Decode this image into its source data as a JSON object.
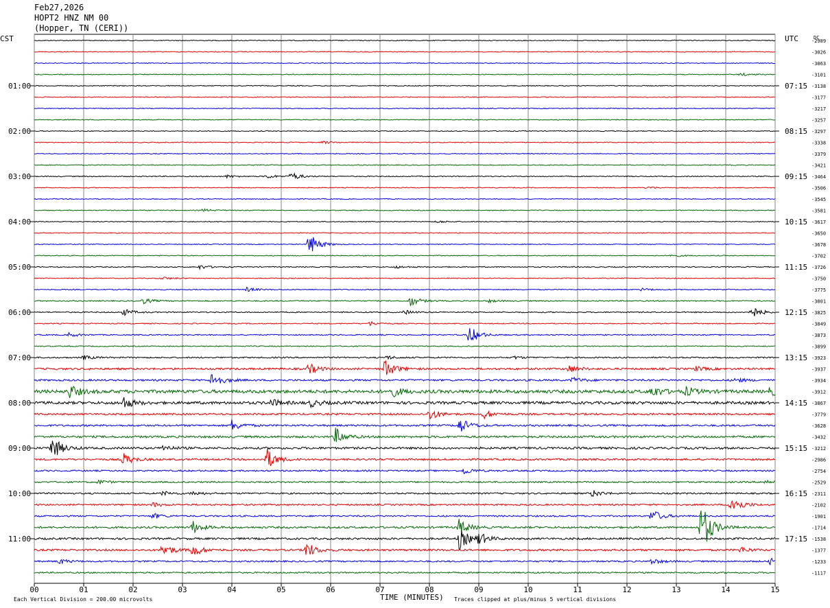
{
  "header": {
    "date": "Feb27,2026",
    "station": "HOPT2 HNZ NM 00",
    "location": "(Hopper, TN (CERI))"
  },
  "chart_data": {
    "type": "line",
    "title": "Feb27,2026",
    "xlabel": "TIME (MINUTES)",
    "left_axis_title": "CST",
    "right_axis_title": "UTC",
    "dc_label": "DC",
    "x_ticks": [
      "00",
      "01",
      "02",
      "03",
      "04",
      "05",
      "06",
      "07",
      "08",
      "09",
      "10",
      "11",
      "12",
      "13",
      "14",
      "15"
    ],
    "xlim": [
      0,
      15
    ],
    "left_hour_labels": [
      "01:00",
      "02:00",
      "03:00",
      "04:00",
      "05:00",
      "06:00",
      "07:00",
      "08:00",
      "09:00",
      "10:00",
      "11:00"
    ],
    "right_hour_labels": [
      "07:15",
      "08:15",
      "09:15",
      "10:15",
      "11:15",
      "12:15",
      "13:15",
      "14:15",
      "15:15",
      "16:15",
      "17:15"
    ],
    "dc_offsets": [
      "-2989",
      "-3026",
      "-3063",
      "-3101",
      "-3138",
      "-3177",
      "-3217",
      "-3257",
      "-3297",
      "-3338",
      "-3379",
      "-3421",
      "-3464",
      "-3506",
      "-3545",
      "-3581",
      "-3617",
      "-3650",
      "-3678",
      "-3702",
      "-3726",
      "-3750",
      "-3775",
      "-3801",
      "-3825",
      "-3849",
      "-3873",
      "-3899",
      "-3923",
      "-3937",
      "-3934",
      "-3912",
      "-3867",
      "-3779",
      "-3628",
      "-3432",
      "-3212",
      "-2986",
      "-2754",
      "-2529",
      "-2311",
      "-2102",
      "-1901",
      "-1714",
      "-1538",
      "-1377",
      "-1233",
      "-1117"
    ],
    "trace_colors": [
      "#000000",
      "#dd0000",
      "#0000dd",
      "#006600"
    ],
    "footer_left": "Each Vertical Division =  200.00 microvolts",
    "footer_right": "Traces clipped at plus/minus 5 vertical divisions",
    "grid": true,
    "series": [
      {
        "events": [],
        "noise": 0.6
      },
      {
        "events": [],
        "noise": 0.6
      },
      {
        "events": [],
        "noise": 0.6
      },
      {
        "events": [
          [
            14.3,
            2
          ]
        ],
        "noise": 0.6
      },
      {
        "events": [],
        "noise": 0.6
      },
      {
        "events": [],
        "noise": 0.6
      },
      {
        "events": [],
        "noise": 0.6
      },
      {
        "events": [],
        "noise": 0.6
      },
      {
        "events": [],
        "noise": 0.6
      },
      {
        "events": [
          [
            5.85,
            2
          ]
        ],
        "noise": 0.6
      },
      {
        "events": [],
        "noise": 0.6
      },
      {
        "events": [],
        "noise": 0.6
      },
      {
        "events": [
          [
            5.2,
            6
          ],
          [
            4.7,
            3
          ],
          [
            3.9,
            2
          ]
        ],
        "noise": 0.7
      },
      {
        "events": [
          [
            12.4,
            2
          ]
        ],
        "noise": 0.6
      },
      {
        "events": [],
        "noise": 0.6
      },
      {
        "events": [
          [
            3.4,
            2
          ]
        ],
        "noise": 0.6
      },
      {
        "events": [
          [
            8.15,
            2
          ]
        ],
        "noise": 0.6
      },
      {
        "events": [],
        "noise": 0.6
      },
      {
        "events": [
          [
            5.55,
            18
          ]
        ],
        "noise": 0.6
      },
      {
        "events": [
          [
            12.9,
            2
          ]
        ],
        "noise": 0.6
      },
      {
        "events": [
          [
            3.35,
            3
          ],
          [
            7.3,
            2
          ]
        ],
        "noise": 0.7
      },
      {
        "events": [
          [
            2.6,
            2
          ]
        ],
        "noise": 0.6
      },
      {
        "events": [
          [
            4.3,
            3
          ],
          [
            12.3,
            2
          ]
        ],
        "noise": 0.7
      },
      {
        "events": [
          [
            7.6,
            8
          ],
          [
            2.2,
            4
          ],
          [
            9.2,
            2
          ]
        ],
        "noise": 0.8
      },
      {
        "events": [
          [
            1.8,
            5
          ],
          [
            7.5,
            3
          ],
          [
            14.5,
            10
          ]
        ],
        "noise": 0.8
      },
      {
        "events": [
          [
            6.8,
            3
          ]
        ],
        "noise": 0.7
      },
      {
        "events": [
          [
            8.8,
            14
          ],
          [
            0.7,
            3
          ]
        ],
        "noise": 0.8
      },
      {
        "events": [],
        "noise": 0.7
      },
      {
        "events": [
          [
            1.0,
            3
          ],
          [
            7.1,
            3
          ],
          [
            9.7,
            2
          ]
        ],
        "noise": 1.0
      },
      {
        "events": [
          [
            5.55,
            8
          ],
          [
            7.1,
            14
          ],
          [
            10.8,
            6
          ],
          [
            13.4,
            3
          ]
        ],
        "noise": 1.4
      },
      {
        "events": [
          [
            3.6,
            12
          ],
          [
            10.9,
            4
          ],
          [
            14.2,
            3
          ]
        ],
        "noise": 1.3
      },
      {
        "events": [
          [
            0.7,
            10
          ],
          [
            7.2,
            9
          ],
          [
            12.5,
            8
          ],
          [
            13.2,
            6
          ],
          [
            14.9,
            6
          ]
        ],
        "noise": 2.4
      },
      {
        "events": [
          [
            1.8,
            9
          ],
          [
            4.8,
            5
          ],
          [
            5.6,
            5
          ]
        ],
        "noise": 2.0
      },
      {
        "events": [
          [
            8.0,
            9
          ],
          [
            9.1,
            6
          ]
        ],
        "noise": 1.3
      },
      {
        "events": [
          [
            4.0,
            8
          ],
          [
            8.6,
            12
          ]
        ],
        "noise": 1.3
      },
      {
        "events": [
          [
            6.1,
            12
          ]
        ],
        "noise": 1.5
      },
      {
        "events": [
          [
            0.35,
            18
          ],
          [
            2.6,
            4
          ]
        ],
        "noise": 1.5
      },
      {
        "events": [
          [
            1.8,
            9
          ],
          [
            4.7,
            16
          ]
        ],
        "noise": 1.3
      },
      {
        "events": [
          [
            8.7,
            5
          ]
        ],
        "noise": 1.1
      },
      {
        "events": [
          [
            1.3,
            3
          ],
          [
            14.8,
            3
          ]
        ],
        "noise": 1.1
      },
      {
        "events": [
          [
            2.6,
            3
          ],
          [
            3.2,
            3
          ],
          [
            11.3,
            5
          ]
        ],
        "noise": 1.1
      },
      {
        "events": [
          [
            2.4,
            3
          ],
          [
            14.1,
            16
          ]
        ],
        "noise": 1.1
      },
      {
        "events": [
          [
            2.4,
            4
          ],
          [
            12.5,
            10
          ]
        ],
        "noise": 1.1
      },
      {
        "events": [
          [
            3.2,
            9
          ],
          [
            8.6,
            11
          ],
          [
            13.5,
            40
          ]
        ],
        "noise": 1.4
      },
      {
        "events": [
          [
            8.6,
            16
          ],
          [
            9.0,
            8
          ]
        ],
        "noise": 1.4
      },
      {
        "events": [
          [
            2.6,
            10
          ],
          [
            3.2,
            10
          ],
          [
            5.5,
            12
          ],
          [
            14.3,
            4
          ]
        ],
        "noise": 1.4
      },
      {
        "events": [
          [
            0.5,
            4
          ],
          [
            12.5,
            4
          ],
          [
            14.9,
            4
          ]
        ],
        "noise": 1.1
      },
      {
        "events": [],
        "noise": 1.0
      }
    ]
  }
}
